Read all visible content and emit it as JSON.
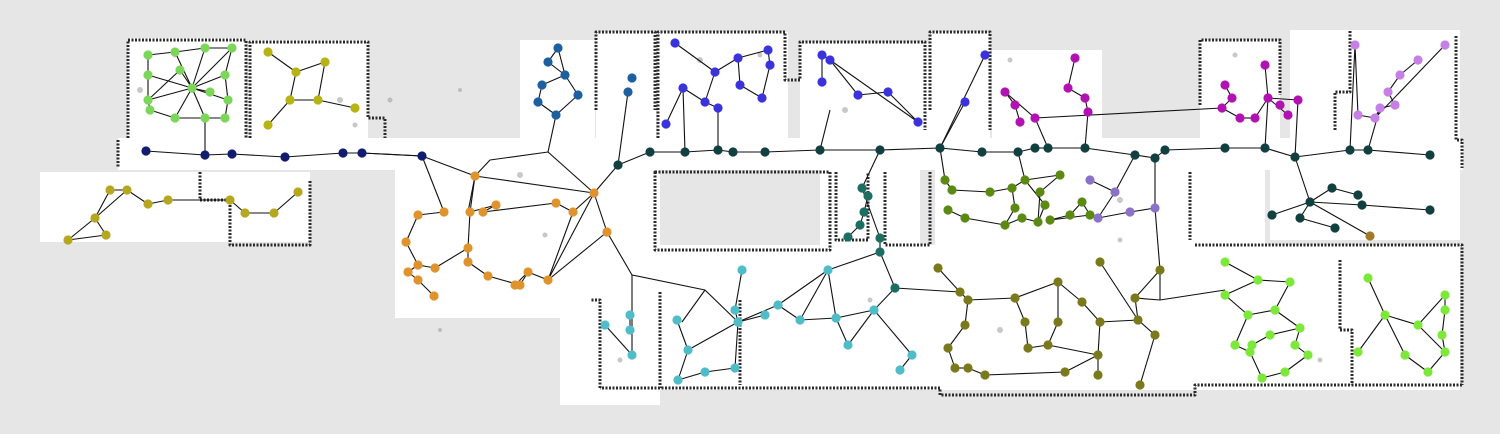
{
  "map": {
    "background_color": "#e6e6e6",
    "free_space_color": "#ffffff",
    "wall_color": "#2a2a2a",
    "edge_color": "#111111"
  },
  "graph": {
    "clusters": [
      {
        "id": "lime-nw",
        "color": "#7cd65a"
      },
      {
        "id": "olive-nw",
        "color": "#b7b314"
      },
      {
        "id": "navy-corridor",
        "color": "#111c6e"
      },
      {
        "id": "gold-west",
        "color": "#b5a820"
      },
      {
        "id": "orange-west",
        "color": "#e0922c"
      },
      {
        "id": "steel-blue-north",
        "color": "#1e5fa0"
      },
      {
        "id": "blue-north",
        "color": "#3a33dd"
      },
      {
        "id": "dark-teal-corridor",
        "color": "#123f3f"
      },
      {
        "id": "cyan-south",
        "color": "#4fbcc8"
      },
      {
        "id": "teal-south",
        "color": "#1c6e62"
      },
      {
        "id": "green-center",
        "color": "#5a8a12"
      },
      {
        "id": "olive-south",
        "color": "#7a7a1c"
      },
      {
        "id": "magenta-north",
        "color": "#b312b3"
      },
      {
        "id": "violet-center",
        "color": "#8a72c8"
      },
      {
        "id": "lavender-ne",
        "color": "#c77fe8"
      },
      {
        "id": "bright-green-se",
        "color": "#7be83a"
      },
      {
        "id": "dark-teal-east",
        "color": "#123f3f"
      },
      {
        "id": "brown-east",
        "color": "#a07a2a"
      }
    ]
  }
}
